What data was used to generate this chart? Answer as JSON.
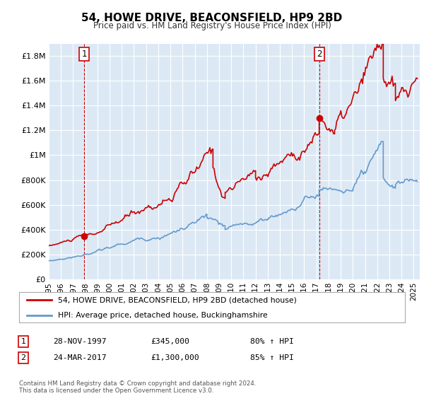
{
  "title": "54, HOWE DRIVE, BEACONSFIELD, HP9 2BD",
  "subtitle": "Price paid vs. HM Land Registry's House Price Index (HPI)",
  "bg_color": "#dce9f5",
  "red_line_color": "#cc0000",
  "blue_line_color": "#6699cc",
  "marker_color": "#cc0000",
  "dashed_color": "#cc0000",
  "ylim": [
    0,
    1900000
  ],
  "xlim_start": 1995.0,
  "xlim_end": 2025.5,
  "sale1_x": 1997.91,
  "sale1_y": 345000,
  "sale1_label": "1",
  "sale1_date": "28-NOV-1997",
  "sale1_price": "£345,000",
  "sale1_hpi": "80% ↑ HPI",
  "sale2_x": 2017.23,
  "sale2_y": 1300000,
  "sale2_label": "2",
  "sale2_date": "24-MAR-2017",
  "sale2_price": "£1,300,000",
  "sale2_hpi": "85% ↑ HPI",
  "legend_label_red": "54, HOWE DRIVE, BEACONSFIELD, HP9 2BD (detached house)",
  "legend_label_blue": "HPI: Average price, detached house, Buckinghamshire",
  "footer": "Contains HM Land Registry data © Crown copyright and database right 2024.\nThis data is licensed under the Open Government Licence v3.0.",
  "yticks": [
    0,
    200000,
    400000,
    600000,
    800000,
    1000000,
    1200000,
    1400000,
    1600000,
    1800000
  ],
  "ytick_labels": [
    "£0",
    "£200K",
    "£400K",
    "£600K",
    "£800K",
    "£1M",
    "£1.2M",
    "£1.4M",
    "£1.6M",
    "£1.8M"
  ],
  "xticks": [
    1995,
    1996,
    1997,
    1998,
    1999,
    2000,
    2001,
    2002,
    2003,
    2004,
    2005,
    2006,
    2007,
    2008,
    2009,
    2010,
    2011,
    2012,
    2013,
    2014,
    2015,
    2016,
    2017,
    2018,
    2019,
    2020,
    2021,
    2022,
    2023,
    2024,
    2025
  ]
}
